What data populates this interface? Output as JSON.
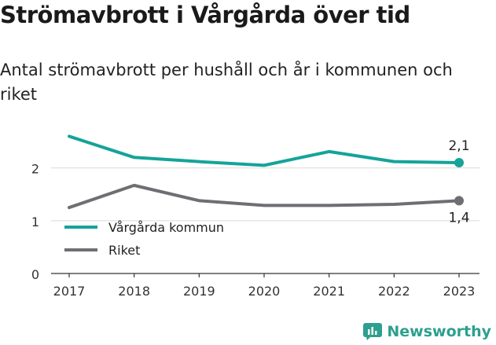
{
  "title": "Strömavbrott i Vårgårda över tid",
  "subtitle": "Antal strömavbrott per hushåll och år i kommunen och riket",
  "brand": {
    "name": "Newsworthy"
  },
  "colors": {
    "vargarda": "#15a39a",
    "riket": "#6e6e73",
    "grid": "#d9d9d9",
    "axis": "#333333"
  },
  "chart_data": {
    "type": "line",
    "categories": [
      "2017",
      "2018",
      "2019",
      "2020",
      "2021",
      "2022",
      "2023"
    ],
    "series": [
      {
        "name": "Vårgårda kommun",
        "values": [
          2.6,
          2.2,
          2.12,
          2.05,
          2.31,
          2.12,
          2.1
        ],
        "color": "#15a39a",
        "end_label": "2,1"
      },
      {
        "name": "Riket",
        "values": [
          1.25,
          1.67,
          1.38,
          1.29,
          1.29,
          1.31,
          1.38
        ],
        "color": "#6e6e73",
        "end_label": "1,4"
      }
    ],
    "yticks": [
      "0",
      "1",
      "2"
    ],
    "ylim": [
      0,
      2.8
    ],
    "grid": true,
    "legend": "bottom-left"
  }
}
